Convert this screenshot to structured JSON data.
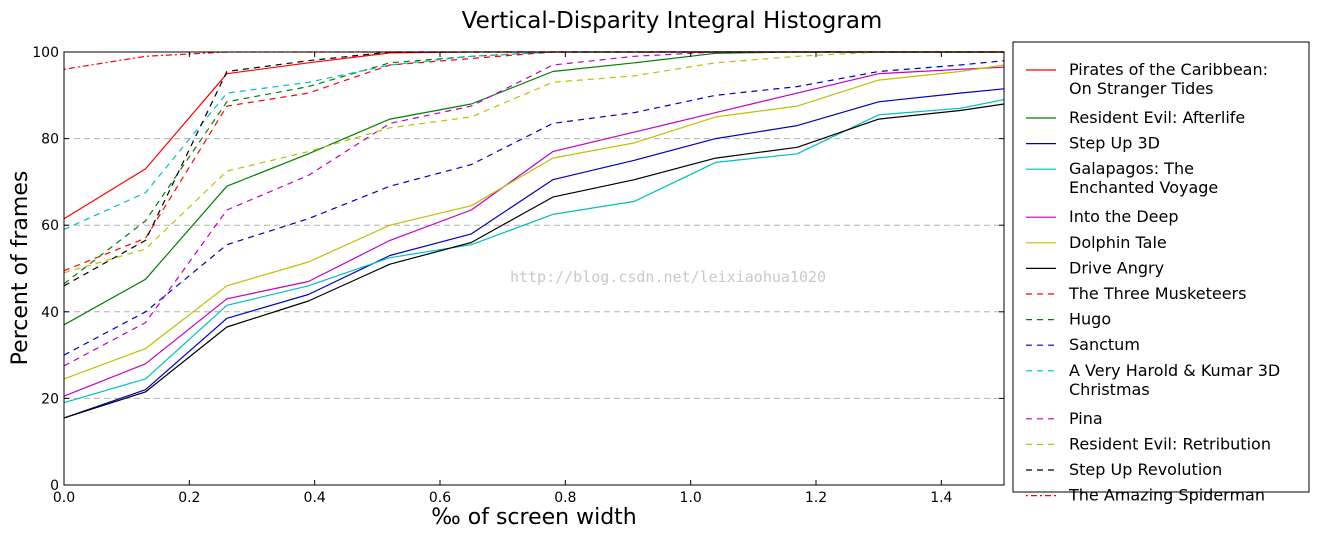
{
  "chart_data": {
    "type": "line",
    "title": "Vertical-Disparity Integral Histogram",
    "xlabel": "‰ of screen width",
    "ylabel": "Percent of frames",
    "xlim": [
      0,
      1.5
    ],
    "ylim": [
      0,
      100
    ],
    "x_ticks": [
      "0.0",
      "0.2",
      "0.4",
      "0.6",
      "0.8",
      "1.0",
      "1.2",
      "1.4"
    ],
    "y_ticks": [
      "0",
      "20",
      "40",
      "60",
      "80",
      "100"
    ],
    "grid": "horizontal dashed",
    "legend_position": "right outside",
    "watermark": "http://blog.csdn.net/leixiaohua1020",
    "x": [
      0.0,
      0.13,
      0.26,
      0.39,
      0.52,
      0.65,
      0.78,
      0.91,
      1.04,
      1.17,
      1.3,
      1.43,
      1.5
    ],
    "series": [
      {
        "name": "Pirates of the Caribbean:\nOn Stranger Tides",
        "color": "#ff0000",
        "style": "solid",
        "values": [
          61.5,
          73,
          95,
          97.5,
          99.8,
          100,
          100,
          100,
          100,
          100,
          100,
          100,
          100
        ]
      },
      {
        "name": "Resident Evil: Afterlife",
        "color": "#008000",
        "style": "solid",
        "values": [
          37,
          47.5,
          69,
          76.5,
          84.5,
          88,
          95.5,
          97.5,
          99.7,
          100,
          100,
          100,
          100
        ]
      },
      {
        "name": "Step Up 3D",
        "color": "#0000bf",
        "style": "solid",
        "values": [
          15.5,
          22,
          38.5,
          44,
          53,
          58,
          70.5,
          75,
          80,
          83,
          88.5,
          90.5,
          91.5
        ]
      },
      {
        "name": "Galapagos: The\nEnchanted Voyage",
        "color": "#00bfbf",
        "style": "solid",
        "values": [
          19,
          24.5,
          41.5,
          46,
          52.5,
          55.5,
          62.5,
          65.5,
          74.5,
          76.5,
          85.5,
          87,
          89
        ]
      },
      {
        "name": "Into the Deep",
        "color": "#bf00bf",
        "style": "solid",
        "values": [
          20.5,
          28,
          43,
          47,
          56.5,
          63.5,
          77,
          81.5,
          86,
          90.5,
          95,
          96,
          96.5
        ]
      },
      {
        "name": "Dolphin Tale",
        "color": "#bfbf00",
        "style": "solid",
        "values": [
          24.5,
          31.5,
          46,
          51.5,
          60,
          64.5,
          75.5,
          79,
          85,
          87.5,
          93.5,
          95.5,
          97
        ]
      },
      {
        "name": "Drive Angry",
        "color": "#000000",
        "style": "solid",
        "values": [
          15.5,
          21.5,
          36.5,
          42.5,
          51,
          56,
          66.5,
          70.5,
          75.5,
          78,
          84.5,
          86.5,
          88
        ]
      },
      {
        "name": "The Three Musketeers",
        "color": "#ff0000",
        "style": "dashed",
        "values": [
          49.5,
          57,
          87.5,
          90.5,
          97,
          98.5,
          100,
          100,
          100,
          100,
          100,
          100,
          100
        ]
      },
      {
        "name": "Hugo",
        "color": "#008000",
        "style": "dashed",
        "values": [
          46.5,
          61,
          88.5,
          92,
          97.5,
          99,
          100,
          100,
          100,
          100,
          100,
          100,
          100
        ]
      },
      {
        "name": "Sanctum",
        "color": "#0000bf",
        "style": "dashed",
        "values": [
          30,
          40,
          55.5,
          61.5,
          69,
          74,
          83.5,
          86,
          90,
          92,
          95.5,
          97,
          98
        ]
      },
      {
        "name": "A Very Harold & Kumar 3D\nChristmas",
        "color": "#00bfbf",
        "style": "dashed",
        "values": [
          59,
          67.5,
          90.5,
          93,
          97,
          99,
          100,
          100,
          100,
          100,
          100,
          100,
          100
        ]
      },
      {
        "name": "Pina",
        "color": "#bf00bf",
        "style": "dashed",
        "values": [
          27.5,
          37.5,
          63.5,
          71.5,
          83.5,
          87.5,
          97,
          99,
          100,
          100,
          100,
          100,
          100
        ]
      },
      {
        "name": "Resident Evil: Retribution",
        "color": "#bfbf00",
        "style": "dashed",
        "values": [
          49,
          54.5,
          72.5,
          77,
          82.5,
          85,
          93,
          94.5,
          97.5,
          99,
          100,
          100,
          100
        ]
      },
      {
        "name": "Step Up Revolution",
        "color": "#000000",
        "style": "dashed",
        "values": [
          46,
          56.5,
          95.5,
          98,
          100,
          100,
          100,
          100,
          100,
          100,
          100,
          100,
          100
        ]
      },
      {
        "name": "The Amazing Spiderman",
        "color": "#ff0000",
        "style": "dashdot",
        "values": [
          96,
          99,
          100,
          100,
          100,
          100,
          100,
          100,
          100,
          100,
          100,
          100,
          100
        ]
      }
    ]
  }
}
